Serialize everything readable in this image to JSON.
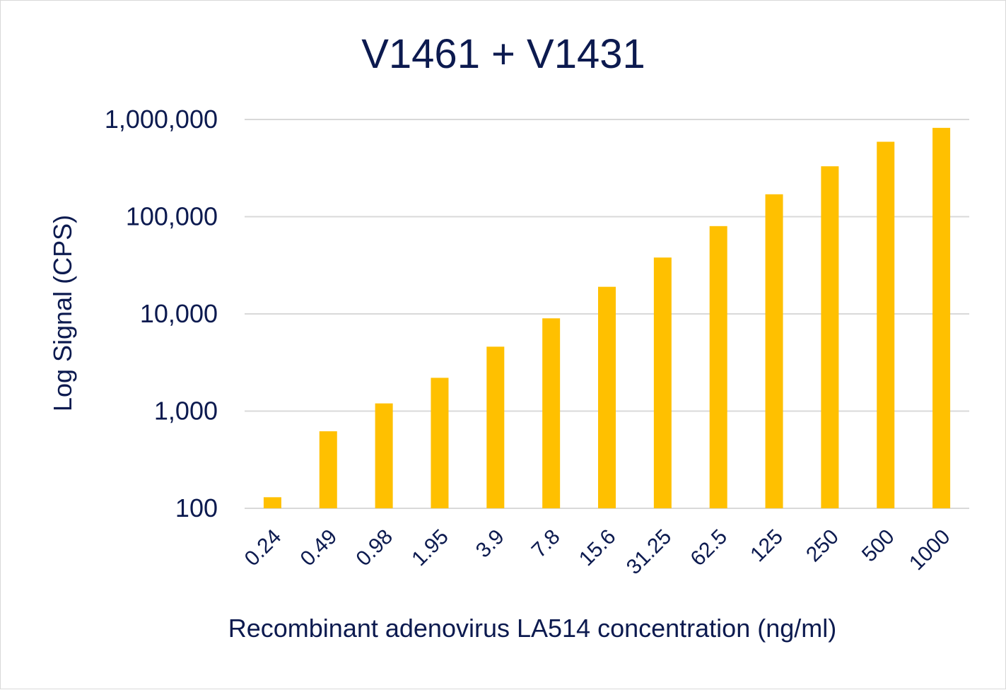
{
  "chart_data": {
    "type": "bar",
    "title": "V1461 + V1431",
    "xlabel": "Recombinant adenovirus LA514 concentration (ng/ml)",
    "ylabel": "Log Signal (CPS)",
    "yscale": "log",
    "ylim": [
      100,
      1000000
    ],
    "yticks": [
      100,
      1000,
      10000,
      100000,
      1000000
    ],
    "ytick_labels": [
      "100",
      "1,000",
      "10,000",
      "100,000",
      "1,000,000"
    ],
    "grid": true,
    "legend": "none",
    "bar_color": "#FFC000",
    "categories": [
      "0.24",
      "0.49",
      "0.98",
      "1.95",
      "3.9",
      "7.8",
      "15.6",
      "31.25",
      "62.5",
      "125",
      "250",
      "500",
      "1000"
    ],
    "values": [
      130,
      620,
      1200,
      2200,
      4600,
      9000,
      19000,
      38000,
      80000,
      170000,
      330000,
      590000,
      820000
    ]
  }
}
